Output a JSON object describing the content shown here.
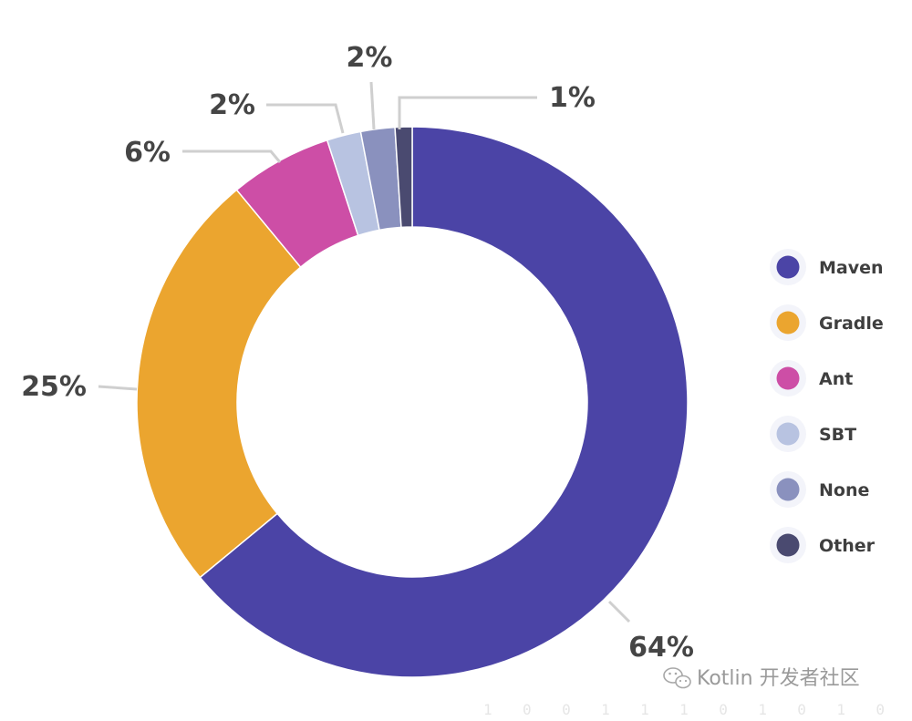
{
  "chart_data": {
    "type": "pie",
    "variant": "donut",
    "title": "",
    "categories": [
      "Maven",
      "Gradle",
      "Ant",
      "SBT",
      "None",
      "Other"
    ],
    "values": [
      64,
      25,
      6,
      2,
      2,
      1
    ],
    "value_labels": [
      "64%",
      "25%",
      "6%",
      "2%",
      "2%",
      "1%"
    ],
    "colors": [
      "#4b44a6",
      "#eba52f",
      "#cd4ea6",
      "#b8c3e1",
      "#8a91be",
      "#4a4a70"
    ],
    "legend": {
      "position": "right",
      "items": [
        {
          "label": "Maven",
          "color": "#4b44a6"
        },
        {
          "label": "Gradle",
          "color": "#eba52f"
        },
        {
          "label": "Ant",
          "color": "#cd4ea6"
        },
        {
          "label": "SBT",
          "color": "#b8c3e1"
        },
        {
          "label": "None",
          "color": "#8a91be"
        },
        {
          "label": "Other",
          "color": "#4a4a70"
        }
      ]
    }
  },
  "watermark": {
    "text": "Kotlin 开发者社区",
    "icon": "wechat-icon"
  },
  "footer_digits": "1 0 0 1 1 1 0 1 0 1 0"
}
